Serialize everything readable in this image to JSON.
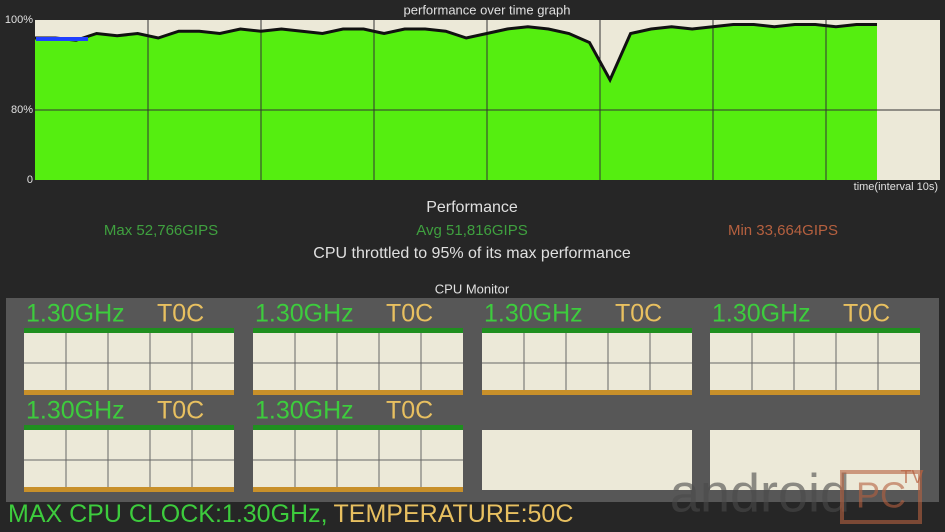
{
  "graph": {
    "title": "performance over time graph",
    "x_label": "time(interval 10s)",
    "yticks": [
      {
        "value": 100,
        "label": "100%"
      },
      {
        "value": 80,
        "label": "80%"
      },
      0
    ],
    "values": [
      96,
      96,
      95.5,
      97,
      96.5,
      97,
      96,
      97.5,
      97.5,
      97,
      98,
      97.5,
      98,
      97.5,
      97,
      98,
      98,
      97,
      98,
      98,
      97.5,
      96,
      97,
      98,
      98.5,
      98,
      97,
      95,
      86.7,
      97,
      98,
      98.5,
      98,
      98.5,
      99,
      99,
      98.5,
      99,
      99,
      98.5,
      99,
      99
    ]
  },
  "performance": {
    "title": "Performance",
    "max": "Max 52,766GIPS",
    "avg": "Avg 51,816GIPS",
    "min": "Min 33,664GIPS",
    "note": "CPU throttled to 95% of its max performance"
  },
  "monitor": {
    "title": "CPU Monitor",
    "cores": [
      {
        "freq": "1.30GHz",
        "temp": "T0C"
      },
      {
        "freq": "1.30GHz",
        "temp": "T0C"
      },
      {
        "freq": "1.30GHz",
        "temp": "T0C"
      },
      {
        "freq": "1.30GHz",
        "temp": "T0C"
      },
      {
        "freq": "1.30GHz",
        "temp": "T0C"
      },
      {
        "freq": "1.30GHz",
        "temp": "T0C"
      }
    ]
  },
  "footer": {
    "clock": "MAX CPU CLOCK:1.30GHz,",
    "temperature": "TEMPERATURE:50C"
  },
  "watermark": {
    "brand": "android",
    "badge": "PC",
    "tv": "TV"
  }
}
